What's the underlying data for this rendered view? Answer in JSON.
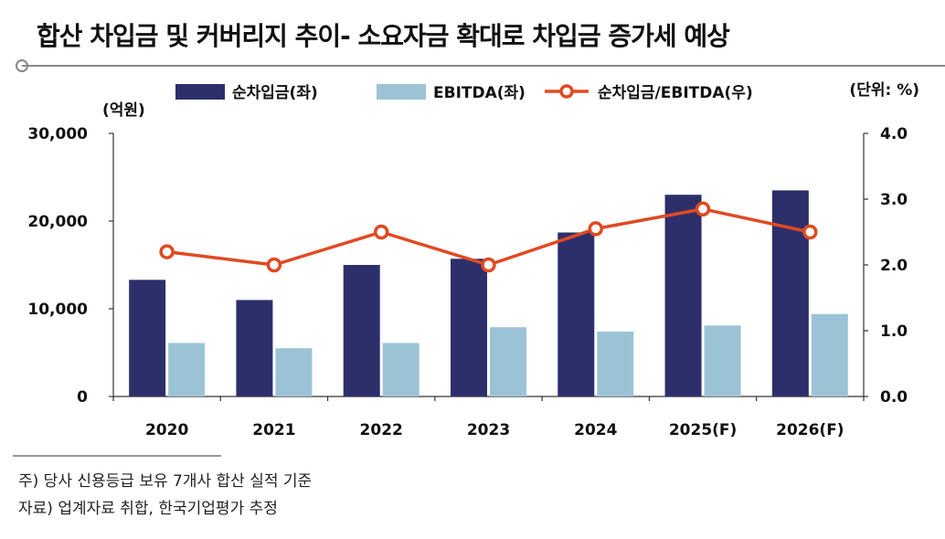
{
  "title": "합산 차입금 및 커버리지 추이- 소요자금 확대로 차입금 증가세 예상",
  "notes": {
    "note1": "주) 당사 신용등급 보유 7개사 합산 실적 기준",
    "note2": "자료) 업계자료 취합, 한국기업평가 추정"
  },
  "chart_data": {
    "type": "bar",
    "categories": [
      "2020",
      "2021",
      "2022",
      "2023",
      "2024",
      "2025(F)",
      "2026(F)"
    ],
    "series": [
      {
        "name": "순차입금(좌)",
        "type": "bar",
        "axis": "left",
        "color": "#2d2f6b",
        "values": [
          13300,
          11000,
          15000,
          15700,
          18700,
          23000,
          23500
        ]
      },
      {
        "name": "EBITDA(좌)",
        "type": "bar",
        "axis": "left",
        "color": "#9cc3d5",
        "values": [
          6100,
          5500,
          6100,
          7900,
          7400,
          8100,
          9400
        ]
      },
      {
        "name": "순차입금/EBITDA(우)",
        "type": "line",
        "axis": "right",
        "color": "#e04a22",
        "values": [
          2.2,
          2.0,
          2.5,
          2.0,
          2.55,
          2.85,
          2.5
        ]
      }
    ],
    "y_left": {
      "label": "(억원)",
      "ylim": [
        0,
        30000
      ],
      "ticks": [
        "0",
        "10,000",
        "20,000",
        "30,000"
      ],
      "tick_values": [
        0,
        10000,
        20000,
        30000
      ]
    },
    "y_right": {
      "label": "(단위: %)",
      "ylim": [
        0,
        4.0
      ],
      "ticks": [
        "0.0",
        "1.0",
        "2.0",
        "3.0",
        "4.0"
      ],
      "tick_values": [
        0,
        1,
        2,
        3,
        4
      ]
    },
    "legend": {
      "placement": "top"
    },
    "grid": false
  }
}
